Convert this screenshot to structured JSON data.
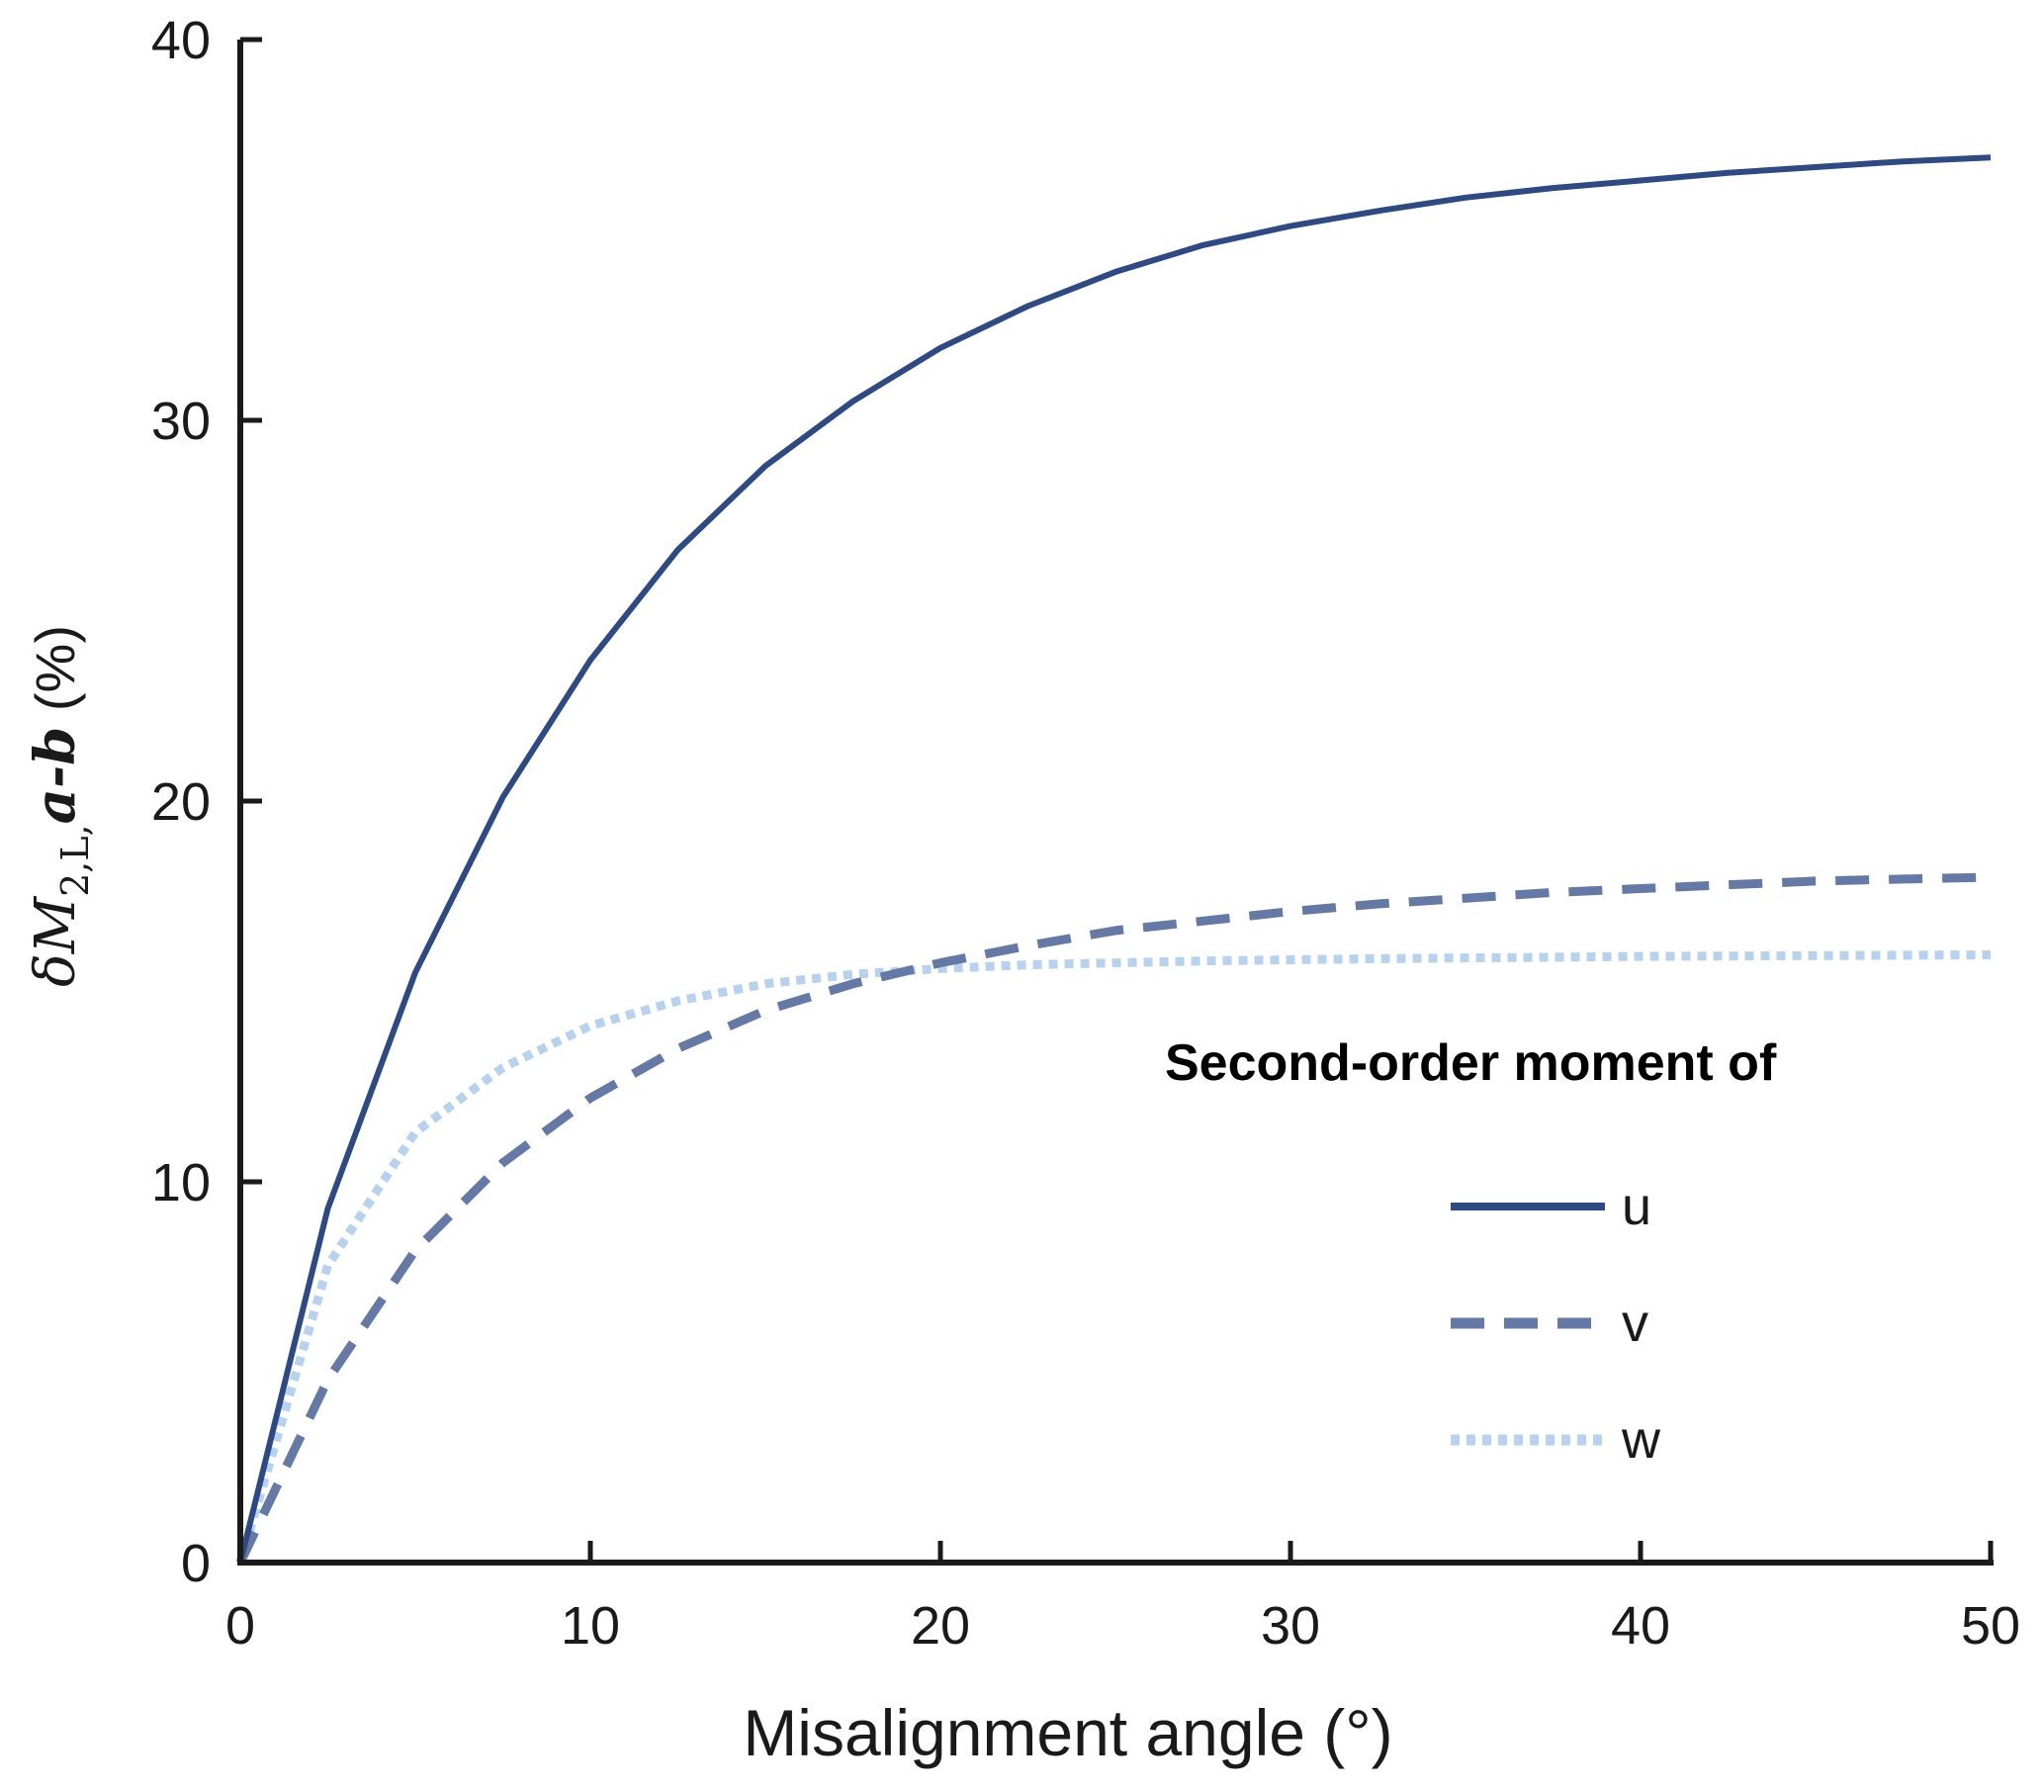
{
  "chart_data": {
    "type": "line",
    "xlabel": "Misalignment angle (°)",
    "ylabel": {
      "prefix": "δM",
      "subscript": "2,L,",
      "bold_part": "a-b",
      "suffix": " (%)"
    },
    "xlim": [
      0,
      50
    ],
    "ylim": [
      0,
      40
    ],
    "x_ticks": [
      "0",
      "10",
      "20",
      "30",
      "40",
      "50"
    ],
    "y_ticks": [
      "0",
      "10",
      "20",
      "30",
      "40"
    ],
    "grid": false,
    "legend": {
      "title": "Second-order moment of",
      "placement": "lower-right"
    },
    "x": [
      0,
      2.5,
      5,
      7.5,
      10,
      12.5,
      15,
      17.5,
      20,
      22.5,
      25,
      27.5,
      30,
      32.5,
      35,
      37.5,
      40,
      42.5,
      45,
      47.5,
      50
    ],
    "series": [
      {
        "name": "u",
        "style": "solid",
        "color": "#2e4a85",
        "values": [
          0,
          9.3,
          15.5,
          20.1,
          23.7,
          26.6,
          28.8,
          30.5,
          31.9,
          33.0,
          33.9,
          34.6,
          35.1,
          35.5,
          35.85,
          36.1,
          36.3,
          36.5,
          36.65,
          36.8,
          36.9
        ]
      },
      {
        "name": "v",
        "style": "dashed",
        "color": "#6479a6",
        "values": [
          0,
          4.8,
          8.2,
          10.5,
          12.2,
          13.5,
          14.5,
          15.2,
          15.75,
          16.2,
          16.6,
          16.85,
          17.1,
          17.3,
          17.45,
          17.6,
          17.7,
          17.8,
          17.9,
          17.95,
          18.0
        ]
      },
      {
        "name": "w",
        "style": "dotted",
        "color": "#b7d2ee",
        "values": [
          0,
          7.8,
          11.3,
          13.0,
          14.1,
          14.75,
          15.2,
          15.45,
          15.6,
          15.7,
          15.75,
          15.8,
          15.83,
          15.86,
          15.88,
          15.9,
          15.92,
          15.93,
          15.94,
          15.95,
          15.96
        ]
      }
    ]
  }
}
